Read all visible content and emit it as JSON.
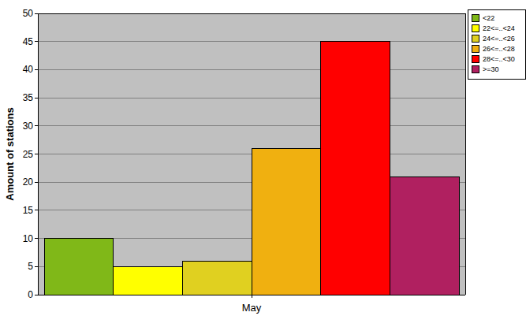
{
  "chart_data": {
    "type": "bar",
    "y_label": "Amount of stations",
    "categories": [
      "May"
    ],
    "series": [
      {
        "name": "<22",
        "color": "#80b818",
        "values": [
          10
        ]
      },
      {
        "name": "22<=..<24",
        "color": "#ffff00",
        "values": [
          5
        ]
      },
      {
        "name": "24<=..<26",
        "color": "#e0d020",
        "values": [
          6
        ]
      },
      {
        "name": "26<=..<28",
        "color": "#f0b010",
        "values": [
          26
        ]
      },
      {
        "name": "28<=..<30",
        "color": "#ff0000",
        "values": [
          45
        ]
      },
      {
        "name": ">=30",
        "color": "#b02060",
        "values": [
          21
        ]
      }
    ],
    "ylim": [
      0,
      50
    ],
    "yticks": [
      0,
      5,
      10,
      15,
      20,
      25,
      30,
      35,
      40,
      45,
      50
    ],
    "grid": true,
    "legend": "top-right"
  }
}
